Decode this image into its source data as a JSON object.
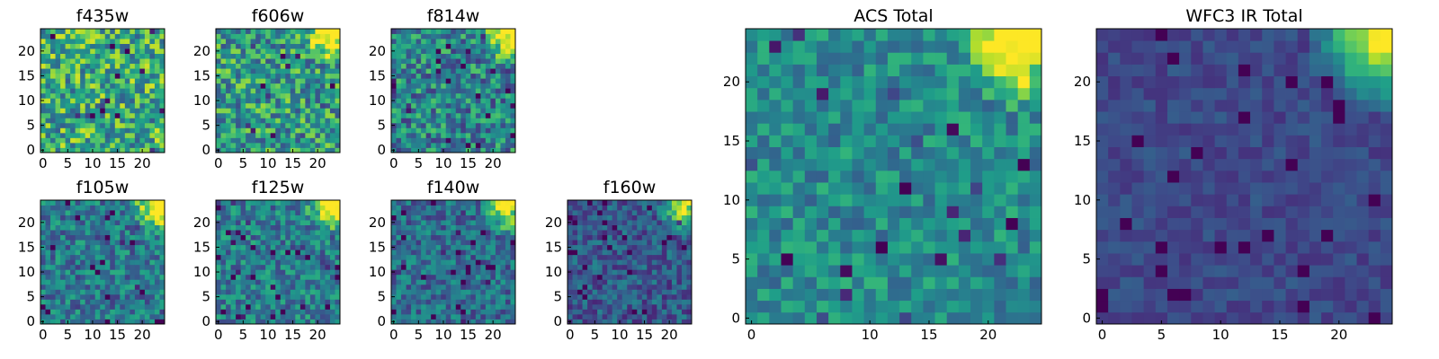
{
  "figure": {
    "colormap": "viridis"
  },
  "chart_data": [
    {
      "type": "heatmap",
      "title": "f435w",
      "grid": 25,
      "xlim": [
        0,
        24
      ],
      "ylim": [
        0,
        24
      ],
      "xticks": [
        0,
        5,
        10,
        15,
        20
      ],
      "yticks": [
        0,
        5,
        10,
        15,
        20
      ],
      "bright_corner": "none",
      "brightness": 0.62,
      "noise": 0.32,
      "seed": 11
    },
    {
      "type": "heatmap",
      "title": "f606w",
      "grid": 25,
      "xlim": [
        0,
        24
      ],
      "ylim": [
        0,
        24
      ],
      "xticks": [
        0,
        5,
        10,
        15,
        20
      ],
      "yticks": [
        0,
        5,
        10,
        15,
        20
      ],
      "bright_corner": "top-right",
      "brightness": 0.55,
      "noise": 0.3,
      "seed": 23
    },
    {
      "type": "heatmap",
      "title": "f814w",
      "grid": 25,
      "xlim": [
        0,
        24
      ],
      "ylim": [
        0,
        24
      ],
      "xticks": [
        0,
        5,
        10,
        15,
        20
      ],
      "yticks": [
        0,
        5,
        10,
        15,
        20
      ],
      "bright_corner": "top-right",
      "brightness": 0.45,
      "noise": 0.28,
      "seed": 37
    },
    {
      "type": "heatmap",
      "title": "f105w",
      "grid": 25,
      "xlim": [
        0,
        24
      ],
      "ylim": [
        0,
        24
      ],
      "xticks": [
        0,
        5,
        10,
        15,
        20
      ],
      "yticks": [
        0,
        5,
        10,
        15,
        20
      ],
      "bright_corner": "top-right",
      "brightness": 0.4,
      "noise": 0.22,
      "seed": 41
    },
    {
      "type": "heatmap",
      "title": "f125w",
      "grid": 25,
      "xlim": [
        0,
        24
      ],
      "ylim": [
        0,
        24
      ],
      "xticks": [
        0,
        5,
        10,
        15,
        20
      ],
      "yticks": [
        0,
        5,
        10,
        15,
        20
      ],
      "bright_corner": "top-right",
      "brightness": 0.42,
      "noise": 0.22,
      "seed": 53
    },
    {
      "type": "heatmap",
      "title": "f140w",
      "grid": 25,
      "xlim": [
        0,
        24
      ],
      "ylim": [
        0,
        24
      ],
      "xticks": [
        0,
        5,
        10,
        15,
        20
      ],
      "yticks": [
        0,
        5,
        10,
        15,
        20
      ],
      "bright_corner": "top-right",
      "brightness": 0.36,
      "noise": 0.2,
      "seed": 67
    },
    {
      "type": "heatmap",
      "title": "f160w",
      "grid": 25,
      "xlim": [
        0,
        24
      ],
      "ylim": [
        0,
        24
      ],
      "xticks": [
        0,
        5,
        10,
        15,
        20
      ],
      "yticks": [
        0,
        5,
        10,
        15,
        20
      ],
      "bright_corner": "top-right",
      "brightness": 0.28,
      "noise": 0.18,
      "seed": 79
    },
    {
      "type": "heatmap",
      "title": "ACS Total",
      "grid": 25,
      "xlim": [
        0,
        24
      ],
      "ylim": [
        0,
        24
      ],
      "xticks": [
        0,
        10,
        15,
        20
      ],
      "yticks": [
        0,
        5,
        10,
        15,
        20
      ],
      "bright_corner": "top-right",
      "brightness": 0.48,
      "noise": 0.18,
      "seed": 97
    },
    {
      "type": "heatmap",
      "title": "WFC3 IR Total",
      "grid": 25,
      "xlim": [
        0,
        24
      ],
      "ylim": [
        0,
        24
      ],
      "xticks": [
        0,
        5,
        10,
        15,
        20
      ],
      "yticks": [
        0,
        5,
        10,
        15,
        20
      ],
      "bright_corner": "top-right",
      "brightness": 0.22,
      "noise": 0.08,
      "seed": 131
    }
  ]
}
